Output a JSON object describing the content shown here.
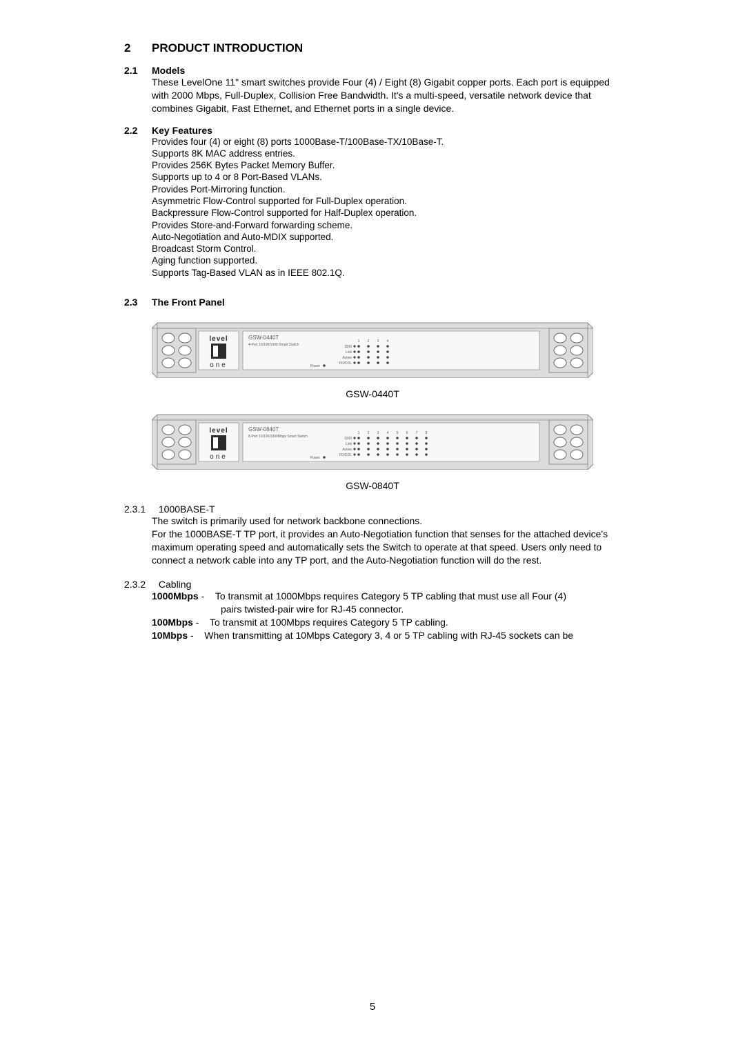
{
  "h2": {
    "num": "2",
    "title": "PRODUCT INTRODUCTION"
  },
  "s21": {
    "num": "2.1",
    "title": "Models",
    "text": "These LevelOne 11\" smart switches provide Four (4) / Eight (8) Gigabit copper ports. Each port is equipped with 2000 Mbps, Full-Duplex, Collision Free Bandwidth. It's a multi-speed, versatile network device that combines Gigabit, Fast Ethernet, and Ethernet ports in a single device."
  },
  "s22": {
    "num": "2.2",
    "title": "Key Features",
    "features": [
      "Provides four (4) or eight (8) ports 1000Base-T/100Base-TX/10Base-T.",
      "Supports 8K MAC address entries.",
      "Provides 256K Bytes Packet Memory Buffer.",
      "Supports up to 4 or 8 Port-Based VLANs.",
      "Provides Port-Mirroring function.",
      "Asymmetric Flow-Control supported for Full-Duplex operation.",
      "Backpressure Flow-Control supported for Half-Duplex operation.",
      "Provides Store-and-Forward forwarding scheme.",
      "Auto-Negotiation and Auto-MDIX supported.",
      "Broadcast Storm Control.",
      "Aging function supported.",
      "Supports Tag-Based VLAN as in IEEE 802.1Q."
    ]
  },
  "s23": {
    "num": "2.3",
    "title": "The Front Panel",
    "panel4": {
      "model": "GSW-0440T",
      "desc": "4-Port 10/100/1000 Smart Switch",
      "ports": 4,
      "caption": "GSW-0440T"
    },
    "panel8": {
      "model": "GSW-0840T",
      "desc": "8-Port 10/100/1000Mbps Smart Switch",
      "ports": 8,
      "caption": "GSW-0840T"
    },
    "led_rows": [
      "1000",
      "Link",
      "Active",
      "FD/COL"
    ],
    "power_label": "Power",
    "brand_top": "level",
    "brand_bot": "one"
  },
  "s231": {
    "num": "2.3.1",
    "title": "1000BASE-T",
    "line1": "The switch is primarily used for network backbone connections.",
    "line2": "For the 1000BASE-T TP port, it provides an Auto-Negotiation function that senses for the attached device's maximum operating speed and automatically sets the Switch to operate at that speed. Users only need to connect a network cable into any TP port, and the Auto-Negotiation function will do the rest."
  },
  "s232": {
    "num": "2.3.2",
    "title": "Cabling",
    "rows": [
      {
        "label": "1000Mbps",
        "sep": " - ",
        "text": "To transmit at 1000Mbps requires Category 5 TP cabling that must use all Four (4) pairs twisted-pair wire for RJ-45 connector."
      },
      {
        "label": "100Mbps",
        "sep": " - ",
        "text": "To transmit at 100Mbps requires Category 5 TP cabling."
      },
      {
        "label": "10Mbps",
        "sep": " - ",
        "text": "When transmitting at 10Mbps Category 3, 4 or 5 TP cabling with RJ-45 sockets can be"
      }
    ]
  },
  "page_number": "5",
  "panel": {
    "chassis_color": "#dcdcdc",
    "stroke_color": "#8a8a8a",
    "hole_color": "#ffffff",
    "led_color": "#444444"
  }
}
